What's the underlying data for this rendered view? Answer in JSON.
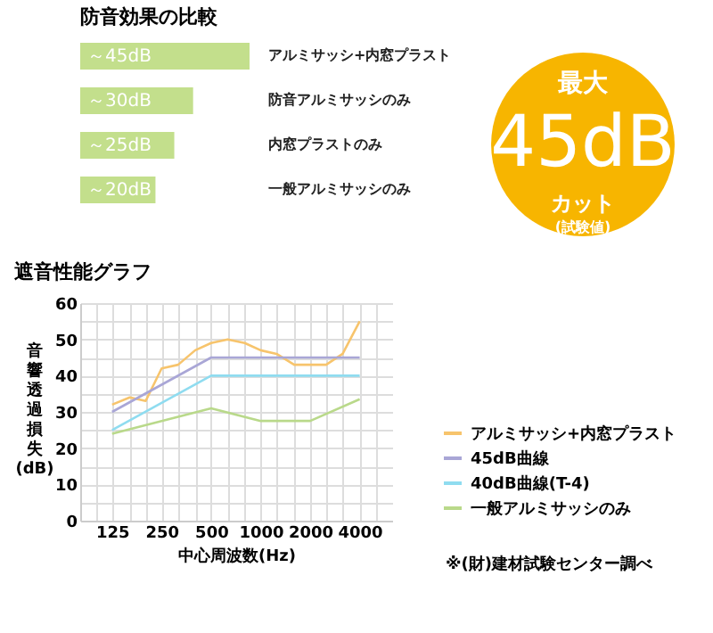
{
  "chart_data": [
    {
      "type": "bar",
      "orientation": "horizontal",
      "title": "防音効果の比較",
      "categories": [
        "アルミサッシ+内窓プラスト",
        "防音アルミサッシのみ",
        "内窓プラストのみ",
        "一般アルミサッシのみ"
      ],
      "values": [
        45,
        30,
        25,
        20
      ],
      "color": "#c3df8c",
      "value_labels": [
        "～45dB",
        "～30dB",
        "～25dB",
        "～20dB"
      ]
    },
    {
      "type": "other",
      "color": "#f7b500",
      "annotations": [
        "最大",
        "45dB",
        "カット",
        "(試験値)"
      ]
    },
    {
      "type": "line",
      "title": "遮音性能グラフ",
      "xlabel": "中心周波数(Hz)",
      "ylabel": "音響透過損失(dB)",
      "log": "x",
      "xlim": [
        80,
        6300
      ],
      "ylim": [
        0,
        60
      ],
      "grid": true,
      "legend": "right",
      "xticks": [
        {
          "value": 100,
          "label": null
        },
        125,
        {
          "value": 160,
          "label": null
        },
        {
          "value": 200,
          "label": null
        },
        250,
        {
          "value": 315,
          "label": null
        },
        {
          "value": 400,
          "label": null
        },
        500,
        {
          "value": 630,
          "label": null
        },
        {
          "value": 800,
          "label": null
        },
        1000,
        {
          "value": 1250,
          "label": null
        },
        {
          "value": 1600,
          "label": null
        },
        2000,
        {
          "value": 2500,
          "label": null
        },
        {
          "value": 3150,
          "label": null
        },
        4000,
        {
          "value": 5000,
          "label": null
        }
      ],
      "yticks": [
        0,
        {
          "value": 5,
          "label": null
        },
        10,
        {
          "value": 15,
          "label": null
        },
        20,
        {
          "value": 25,
          "label": null
        },
        30,
        {
          "value": 35,
          "label": null
        },
        40,
        {
          "value": 45,
          "label": null
        },
        50,
        {
          "value": 55,
          "label": null
        },
        60
      ],
      "annotations": [
        "※(財)建材試験センター調べ"
      ],
      "series": [
        {
          "name": "アルミサッシ+内窓プラスト",
          "color": "#f7c46c",
          "x": [
            125,
            160,
            200,
            250,
            315,
            400,
            500,
            630,
            800,
            1000,
            1250,
            1600,
            2000,
            2500,
            3150,
            4000
          ],
          "values": [
            32,
            34,
            33,
            42,
            43,
            47,
            49,
            50,
            49,
            47,
            46,
            43,
            43,
            43,
            46,
            55
          ]
        },
        {
          "name": "45dB曲線",
          "color": "#a9a6d6",
          "x": [
            125,
            500,
            4000
          ],
          "values": [
            30,
            45,
            45
          ]
        },
        {
          "name": "40dB曲線(T-4)",
          "color": "#8fdcf0",
          "x": [
            125,
            500,
            4000
          ],
          "values": [
            25,
            40,
            40
          ]
        },
        {
          "name": "一般アルミサッシのみ",
          "color": "#b9d98a",
          "x": [
            125,
            500,
            1000,
            2000,
            4000
          ],
          "values": [
            24,
            31,
            27.5,
            27.5,
            33.5
          ]
        }
      ]
    }
  ]
}
